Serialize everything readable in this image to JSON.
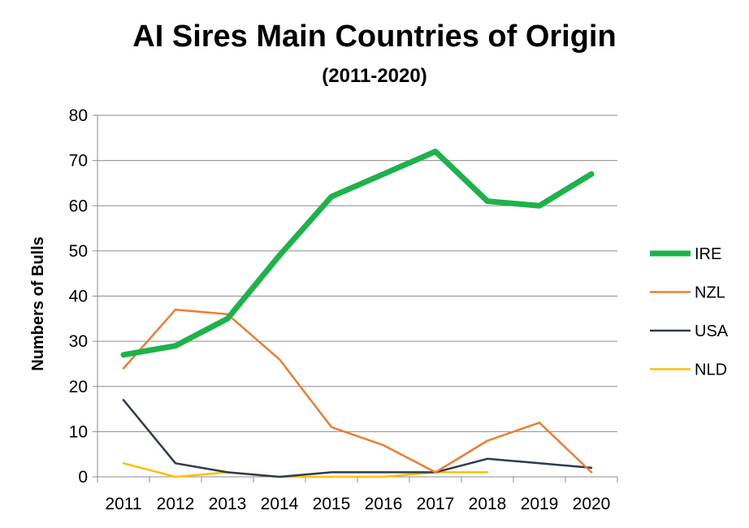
{
  "chart_data": {
    "type": "line",
    "title": "AI Sires Main Countries of Origin",
    "subtitle": "(2011-2020)",
    "xlabel": "",
    "ylabel": "Numbers of Bulls",
    "ylim": [
      0,
      80
    ],
    "yticks": [
      "0",
      "10",
      "20",
      "30",
      "40",
      "50",
      "60",
      "70",
      "80"
    ],
    "categories": [
      "2011",
      "2012",
      "2013",
      "2014",
      "2015",
      "2016",
      "2017",
      "2018",
      "2019",
      "2020"
    ],
    "grid": "horizontal",
    "legend_position": "right",
    "series": [
      {
        "name": "IRE",
        "color": "#1db34a",
        "values": [
          27,
          29,
          35,
          49,
          62,
          67,
          72,
          61,
          60,
          67
        ]
      },
      {
        "name": "NZL",
        "color": "#ed7d31",
        "values": [
          24,
          37,
          36,
          26,
          11,
          7,
          1,
          8,
          12,
          1
        ]
      },
      {
        "name": "USA",
        "color": "#2e3a4f",
        "values": [
          17,
          3,
          1,
          0,
          1,
          1,
          1,
          4,
          3,
          2
        ]
      },
      {
        "name": "NLD",
        "color": "#ffc000",
        "values": [
          3,
          0,
          1,
          0,
          0,
          0,
          1,
          1,
          null,
          null
        ]
      }
    ]
  }
}
